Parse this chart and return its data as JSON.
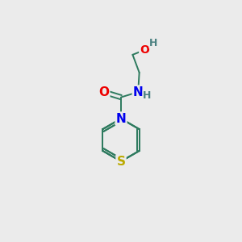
{
  "background_color": "#ebebeb",
  "bond_color": "#2d7a5e",
  "bond_width": 1.4,
  "atom_colors": {
    "N": "#0000ee",
    "O": "#ee0000",
    "S": "#bbaa00",
    "H": "#4a8080"
  },
  "font_size": 10,
  "figsize": [
    3.0,
    3.0
  ],
  "dpi": 100
}
